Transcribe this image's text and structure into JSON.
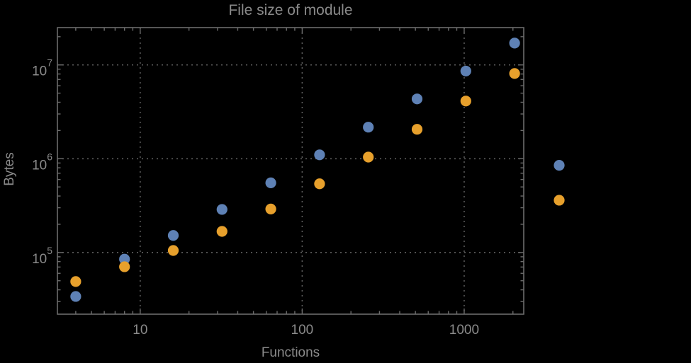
{
  "chart_data": {
    "type": "scatter",
    "title": "File size of module",
    "xlabel": "Functions",
    "ylabel": "Bytes",
    "x_scale": "log",
    "y_scale": "log",
    "x_range": [
      3.082,
      2332
    ],
    "y_range": [
      22000,
      25000000
    ],
    "grid": "dotted-major-decades",
    "legend": "none",
    "x_ticks": [
      {
        "value": 10,
        "label": "10"
      },
      {
        "value": 100,
        "label": "100"
      },
      {
        "value": 1000,
        "label": "1000"
      }
    ],
    "y_ticks": [
      {
        "value": 100000,
        "mantissa": "10",
        "exponent": "5"
      },
      {
        "value": 1000000,
        "mantissa": "10",
        "exponent": "6"
      },
      {
        "value": 10000000,
        "mantissa": "10",
        "exponent": "7"
      }
    ],
    "series": [
      {
        "name": "blue-series",
        "color": "#5E81B5",
        "points": [
          [
            4,
            34000
          ],
          [
            8,
            85000
          ],
          [
            16,
            152000
          ],
          [
            32,
            288000
          ],
          [
            64,
            553000
          ],
          [
            128,
            1100000
          ],
          [
            256,
            2170000
          ],
          [
            512,
            4340000
          ],
          [
            1024,
            8600000
          ],
          [
            2048,
            17100000
          ],
          [
            3860,
            850000
          ]
        ]
      },
      {
        "name": "orange-series",
        "color": "#E7A02C",
        "points": [
          [
            4,
            49000
          ],
          [
            8,
            70500
          ],
          [
            16,
            105000
          ],
          [
            32,
            168000
          ],
          [
            64,
            291000
          ],
          [
            128,
            540000
          ],
          [
            256,
            1040000
          ],
          [
            512,
            2060000
          ],
          [
            1024,
            4120000
          ],
          [
            2048,
            8100000
          ],
          [
            3860,
            361000
          ]
        ]
      }
    ],
    "colors": {
      "background": "#000000",
      "frame": "#6b6b6b",
      "gridline": "#5c5c5c",
      "text": "#8a8a8a"
    }
  }
}
